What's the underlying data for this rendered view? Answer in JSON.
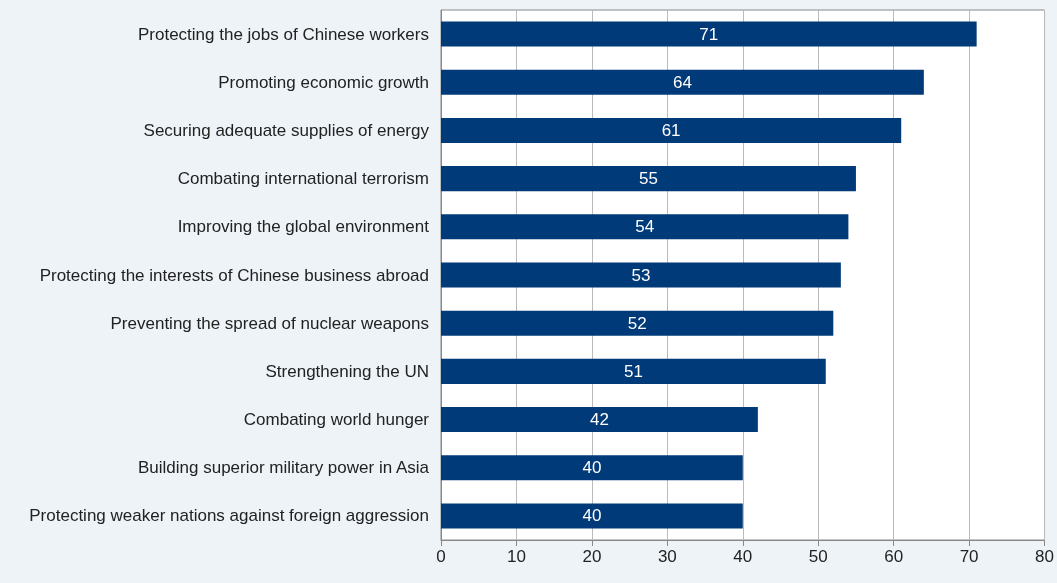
{
  "chart_data": {
    "type": "bar",
    "orientation": "horizontal",
    "categories": [
      "Protecting the jobs of Chinese workers",
      "Promoting economic growth",
      "Securing adequate supplies of energy",
      "Combating international terrorism",
      "Improving the global environment",
      "Protecting the interests of Chinese business abroad",
      "Preventing the spread of nuclear weapons",
      "Strengthening the UN",
      "Combating world hunger",
      "Building superior military power in Asia",
      "Protecting weaker nations against foreign aggression"
    ],
    "values": [
      71,
      64,
      61,
      55,
      54,
      53,
      52,
      51,
      42,
      40,
      40
    ],
    "color": "#003a78",
    "xlim": [
      0,
      80
    ],
    "xticks": [
      0,
      10,
      20,
      30,
      40,
      50,
      60,
      70,
      80
    ],
    "grid": "x",
    "data_labels": true
  }
}
